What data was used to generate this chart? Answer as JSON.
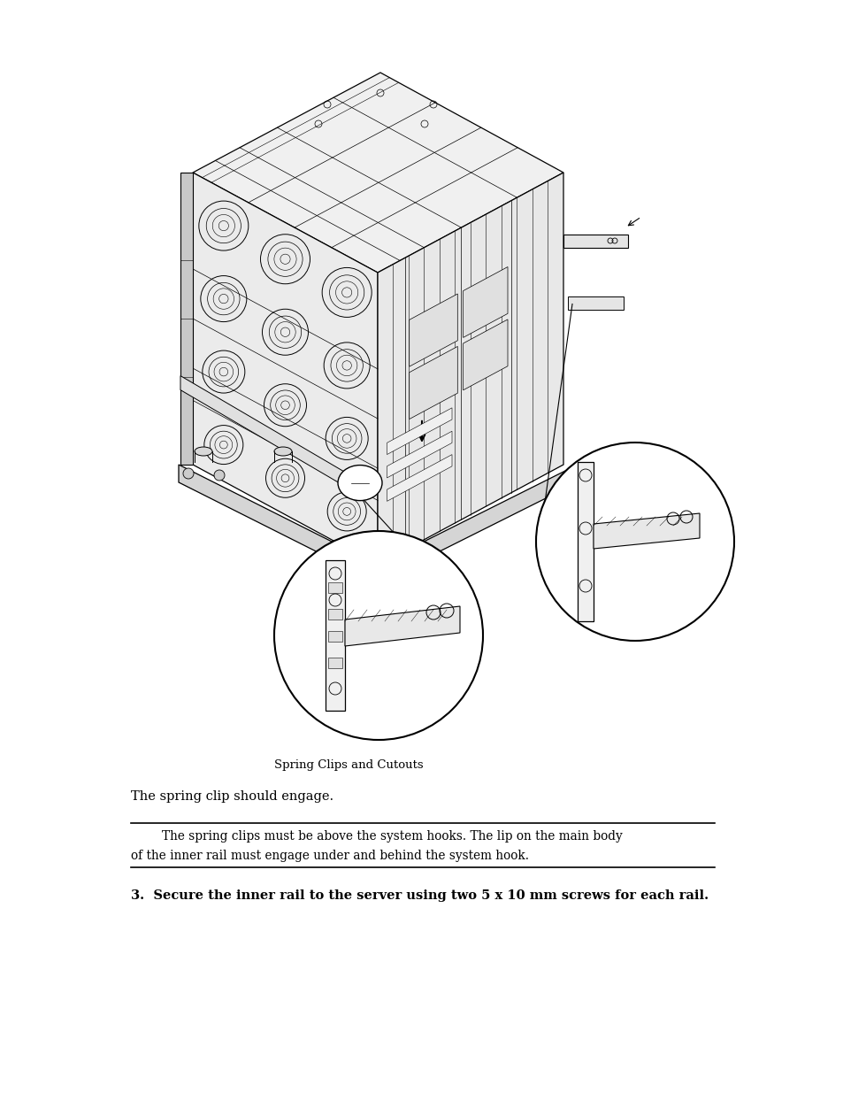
{
  "bg_color": "#ffffff",
  "fig_width": 9.54,
  "fig_height": 12.35,
  "dpi": 100,
  "caption_text": "Spring Clips and Cutouts",
  "body_text1": "The spring clip should engage.",
  "note_text_line1": "        The spring clips must be above the system hooks. The lip on the main body",
  "note_text_line2": "of the inner rail must engage under and behind the system hook.",
  "step_text": "3.  Secure the inner rail to the server using two 5 x 10 mm screws for each rail.",
  "line_color": "#000000",
  "light_gray": "#f0f0f0",
  "mid_gray": "#e0e0e0",
  "dark_gray": "#c8c8c8"
}
